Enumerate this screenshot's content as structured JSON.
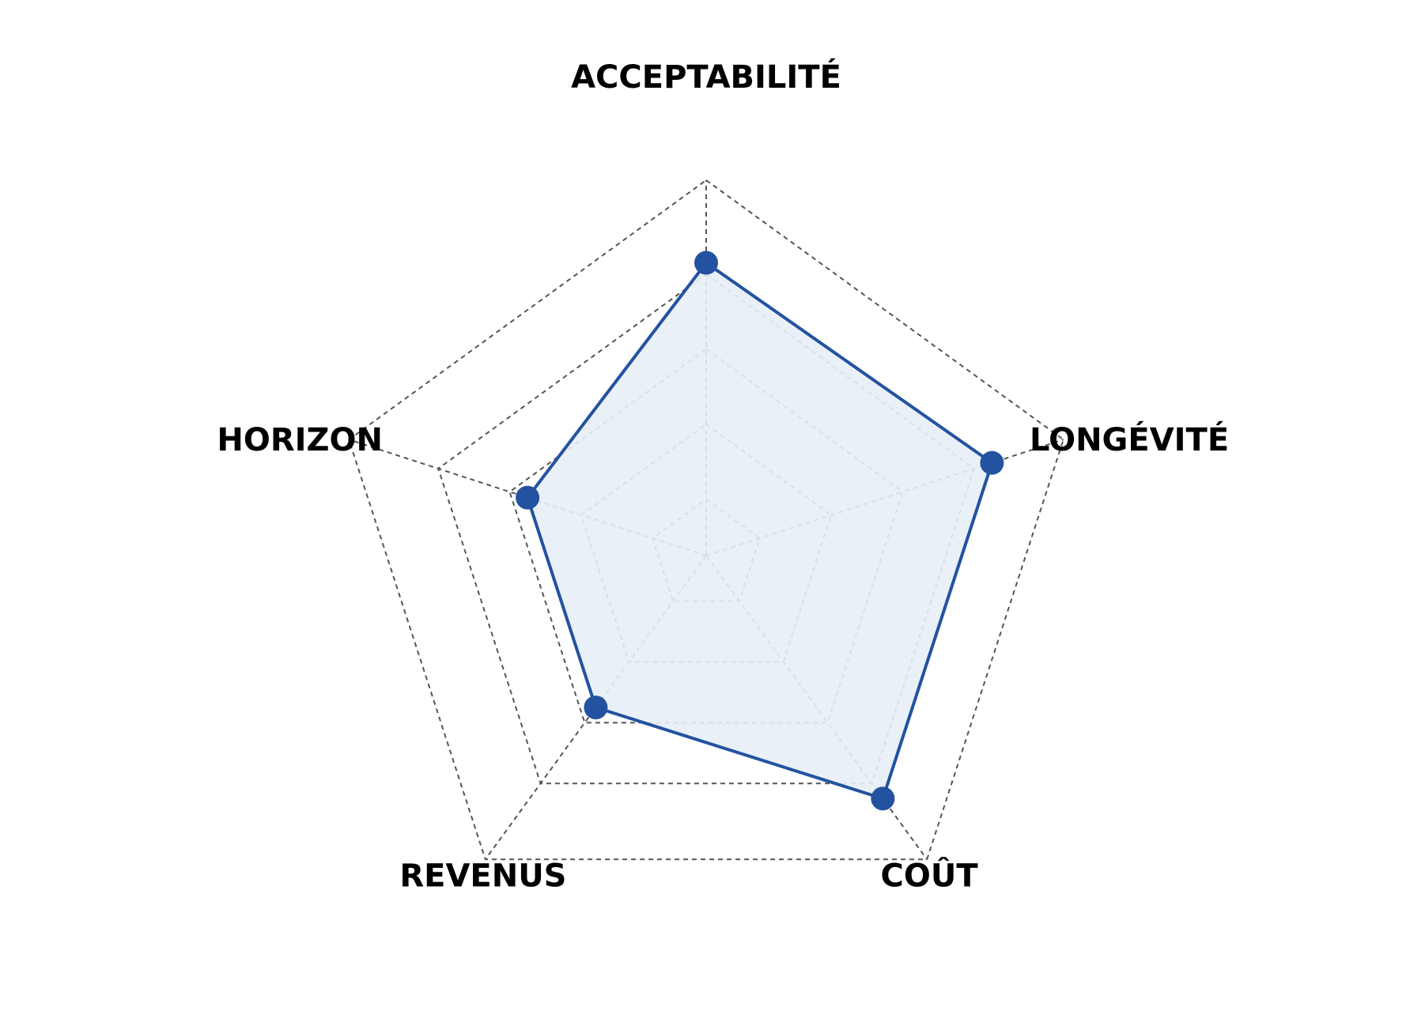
{
  "chart_data": {
    "type": "radar",
    "axes": [
      "ACCEPTABILITÉ",
      "LONGÉVITÉ",
      "COÛT",
      "REVENUS",
      "HORIZON"
    ],
    "series": [
      {
        "values": [
          0.78,
          0.8,
          0.8,
          0.5,
          0.5
        ]
      }
    ],
    "range": [
      0,
      1
    ],
    "rings": [
      0.15,
      0.35,
      0.55,
      0.75,
      1.0
    ],
    "grid": true,
    "grid_style": "dashed",
    "colors": {
      "series_line": "#2352a0",
      "series_fill": "#e8eef6",
      "marker": "#2352a0",
      "grid": "#555555",
      "label": "#000000"
    }
  }
}
